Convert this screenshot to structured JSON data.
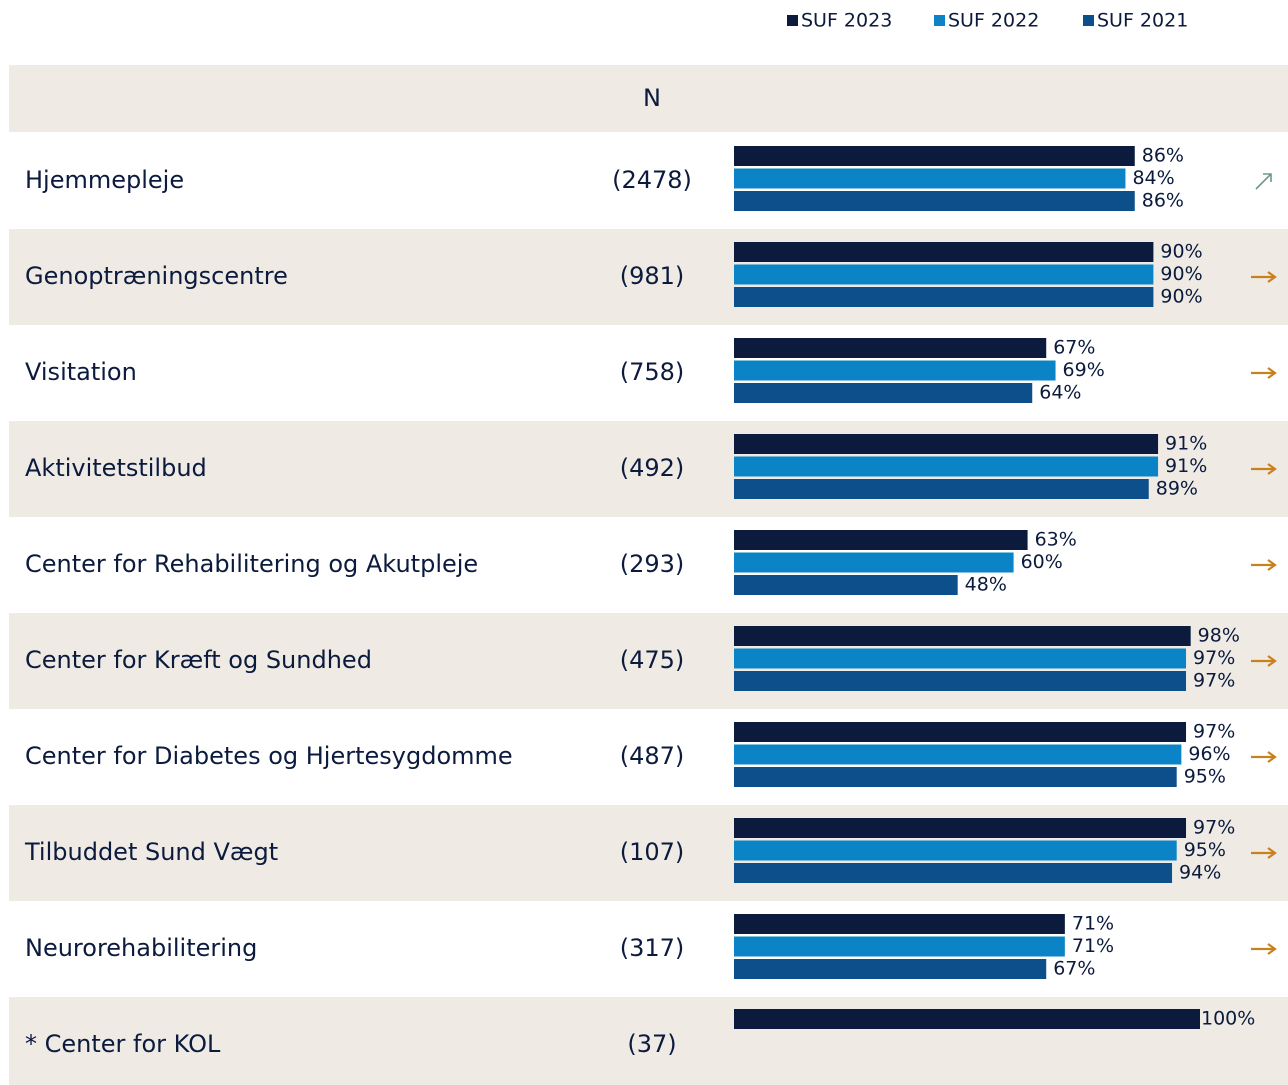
{
  "chart_data": {
    "type": "bar",
    "orientation": "horizontal",
    "column_header": "N",
    "categories": [
      "Hjemmepleje",
      "Genoptræningscentre",
      "Visitation",
      "Aktivitetstilbud",
      "Center for Rehabilitering og Akutpleje",
      "Center for Kræft og Sundhed",
      "Center for Diabetes og Hjertesygdomme",
      "Tilbuddet Sund Vægt",
      "Neurorehabilitering",
      "* Center for KOL"
    ],
    "n": [
      "(2478)",
      "(981)",
      "(758)",
      "(492)",
      "(293)",
      "(475)",
      "(487)",
      "(107)",
      "(317)",
      "(37)"
    ],
    "series": [
      {
        "name": "SUF 2023",
        "color": "#0b1a3d",
        "values": [
          86,
          90,
          67,
          91,
          63,
          98,
          97,
          97,
          71,
          100
        ],
        "value_labels": [
          "86%",
          "90%",
          "67%",
          "91%",
          "63%",
          "98%",
          "97%",
          "97%",
          "71%",
          "100%"
        ]
      },
      {
        "name": "SUF 2022",
        "color": "#0a84c6",
        "values": [
          84,
          90,
          69,
          91,
          60,
          97,
          96,
          95,
          71,
          null
        ],
        "value_labels": [
          "84%",
          "90%",
          "69%",
          "91%",
          "60%",
          "97%",
          "96%",
          "95%",
          "71%",
          null
        ]
      },
      {
        "name": "SUF 2021",
        "color": "#0d4f8b",
        "values": [
          86,
          90,
          64,
          89,
          48,
          97,
          95,
          94,
          67,
          null
        ],
        "value_labels": [
          "86%",
          "90%",
          "64%",
          "89%",
          "48%",
          "97%",
          "95%",
          "94%",
          "67%",
          null
        ]
      }
    ],
    "trends": [
      "up",
      "flat",
      "flat",
      "flat",
      "flat",
      "flat",
      "flat",
      "flat",
      "flat",
      null
    ],
    "xlim": [
      0,
      100
    ]
  }
}
